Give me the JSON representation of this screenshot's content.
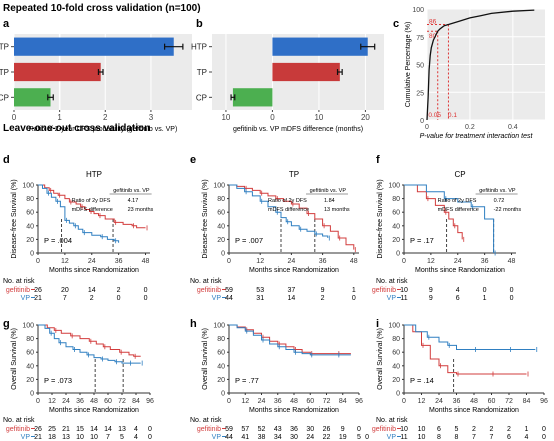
{
  "sections": {
    "top_title": "Repeated 10-fold cross validation (n=100)",
    "bottom_title": "Leave-one-out cross validation"
  },
  "colors": {
    "blue": "#2f6fc7",
    "red": "#c83a3a",
    "green": "#4caf50",
    "gefitinib": "#d23c3c",
    "vp": "#2f7fc1"
  },
  "chart_data": [
    {
      "panel": "a",
      "type": "bar",
      "orientation": "horizontal",
      "categories": [
        "HTP",
        "TP",
        "CP"
      ],
      "values": [
        3.5,
        1.9,
        0.8
      ],
      "errors": [
        0.2,
        0.05,
        0.06
      ],
      "bar_colors": [
        "blue",
        "red",
        "green"
      ],
      "xticks": [
        0,
        1,
        2,
        3
      ],
      "xlim": [
        0,
        3.9
      ],
      "xlabel": "Ratio of 2-year DFS probability (gefitinib vs. VP)",
      "refline": 1
    },
    {
      "panel": "b",
      "type": "bar",
      "orientation": "horizontal",
      "categories": [
        "HTP",
        "TP",
        "CP"
      ],
      "values": [
        20.5,
        14.5,
        -8.5
      ],
      "errors": [
        1.5,
        0.5,
        0.4
      ],
      "bar_colors": [
        "blue",
        "red",
        "green"
      ],
      "xticks": [
        -10,
        0,
        10,
        20
      ],
      "xticklabels": [
        "10",
        "0",
        "10",
        "20"
      ],
      "xlim": [
        -13,
        24
      ],
      "xlabel": "gefitinib vs. VP mDFS difference (months)"
    },
    {
      "panel": "c",
      "type": "line",
      "x": [
        0,
        0.005,
        0.01,
        0.015,
        0.02,
        0.03,
        0.04,
        0.05,
        0.06,
        0.08,
        0.1,
        0.15,
        0.2,
        0.25,
        0.3,
        0.4,
        0.5
      ],
      "y": [
        0,
        20,
        45,
        58,
        65,
        72,
        76,
        80,
        82,
        85,
        86,
        89,
        92,
        94,
        96,
        98,
        99
      ],
      "xlim": [
        0,
        0.55
      ],
      "ylim": [
        0,
        100
      ],
      "xticks": [
        0,
        0.2,
        0.4
      ],
      "yticks": [
        0,
        25,
        50,
        75,
        100
      ],
      "highlight_x": [
        0.05,
        0.1
      ],
      "highlight_x_labels": [
        "0.05",
        "0.1"
      ],
      "highlight_y": [
        80,
        86
      ],
      "highlight_y_labels": [
        "80",
        "86"
      ],
      "ylabel": "Cumulative Percentage (%)",
      "xlabel": "P-value for treatment interaction test"
    },
    {
      "panel": "d",
      "type": "line",
      "title": "HTP",
      "ylabel": "Disease-free Survival (%)",
      "xlabel": "Months since Randomization",
      "xticks": [
        0,
        12,
        24,
        36,
        48
      ],
      "xlim": [
        0,
        50
      ],
      "yticks": [
        0,
        20,
        40,
        60,
        80,
        100
      ],
      "pvalue": "P = .004",
      "inset_header": "gefitinib vs. VP",
      "inset_rows": [
        [
          "Ratio of 2y  DFS",
          "4.17"
        ],
        [
          "mDFS difference",
          "23 months"
        ]
      ],
      "series": [
        {
          "color": "gefitinib",
          "x": [
            0,
            3,
            5,
            7,
            9,
            12,
            14,
            17,
            19,
            21,
            23,
            25,
            27,
            30,
            34,
            38,
            42,
            44,
            48
          ],
          "y": [
            100,
            96,
            92,
            88,
            85,
            80,
            75,
            72,
            68,
            64,
            61,
            58,
            55,
            50,
            45,
            42,
            40,
            37,
            37
          ]
        },
        {
          "color": "vp",
          "x": [
            0,
            2,
            4,
            6,
            8,
            10,
            12,
            14,
            16,
            18,
            20,
            24,
            28,
            31,
            34,
            36
          ],
          "y": [
            100,
            95,
            88,
            82,
            76,
            68,
            48,
            44,
            40,
            35,
            30,
            26,
            24,
            20,
            18,
            15
          ]
        }
      ],
      "median_lines": [
        10.5,
        33.5
      ],
      "risk_times": [
        "0",
        "12",
        "24",
        "36",
        "48"
      ],
      "risk_rows": [
        {
          "label": "gefitinib",
          "values": [
            "26",
            "20",
            "14",
            "2",
            "0"
          ]
        },
        {
          "label": "VP",
          "values": [
            "21",
            "7",
            "2",
            "0",
            "0"
          ]
        }
      ]
    },
    {
      "panel": "e",
      "type": "line",
      "title": "TP",
      "ylabel": "Disease-free Survival (%)",
      "xlabel": "Months since Randomization",
      "xticks": [
        0,
        12,
        24,
        36,
        48
      ],
      "xlim": [
        0,
        50
      ],
      "yticks": [
        0,
        20,
        40,
        60,
        80,
        100
      ],
      "pvalue": "P = .007",
      "inset_header": "gefitinib vs. VP",
      "inset_rows": [
        [
          "Ratio of 2y  DFS",
          "1.84"
        ],
        [
          "mDFS difference",
          "13 months"
        ]
      ],
      "series": [
        {
          "color": "gefitinib",
          "x": [
            0,
            3,
            6,
            9,
            12,
            15,
            18,
            21,
            24,
            27,
            30,
            33,
            36,
            39,
            42,
            45,
            48
          ],
          "y": [
            100,
            98,
            95,
            92,
            88,
            84,
            80,
            76,
            72,
            66,
            58,
            50,
            40,
            32,
            22,
            12,
            5
          ]
        },
        {
          "color": "vp",
          "x": [
            0,
            3,
            6,
            9,
            12,
            15,
            18,
            20,
            22,
            24,
            27,
            30,
            33,
            36,
            38
          ],
          "y": [
            100,
            95,
            90,
            84,
            76,
            68,
            60,
            52,
            46,
            40,
            35,
            32,
            28,
            25,
            22
          ]
        }
      ],
      "median_lines": [
        20,
        33
      ],
      "risk_times": [
        "0",
        "12",
        "24",
        "36",
        "48"
      ],
      "risk_rows": [
        {
          "label": "gefitinib",
          "values": [
            "59",
            "53",
            "37",
            "9",
            "1"
          ]
        },
        {
          "label": "VP",
          "values": [
            "44",
            "31",
            "14",
            "2",
            "0"
          ]
        }
      ]
    },
    {
      "panel": "f",
      "type": "line",
      "title": "CP",
      "ylabel": "Disease-free Survival (%)",
      "xlabel": "Months since Randomization",
      "xticks": [
        0,
        12,
        24,
        36,
        48
      ],
      "xlim": [
        0,
        50
      ],
      "yticks": [
        0,
        20,
        40,
        60,
        80,
        100
      ],
      "pvalue": "P = .17",
      "inset_header": "gefitinib vs. VP",
      "inset_rows": [
        [
          "Ratio of 2y  DFS",
          "0.72"
        ],
        [
          "mDFS difference",
          "-22 months"
        ]
      ],
      "series": [
        {
          "color": "gefitinib",
          "x": [
            0,
            6,
            10,
            14,
            18,
            20,
            22,
            24,
            26
          ],
          "y": [
            100,
            90,
            80,
            70,
            60,
            50,
            40,
            30,
            20
          ]
        },
        {
          "color": "vp",
          "x": [
            0,
            10,
            18,
            24,
            30,
            36,
            40
          ],
          "y": [
            100,
            90,
            80,
            75,
            68,
            50,
            0
          ]
        }
      ],
      "median_lines": [
        19,
        40
      ],
      "risk_times": [
        "0",
        "12",
        "24",
        "36",
        "48"
      ],
      "risk_rows": [
        {
          "label": "gefitinib",
          "values": [
            "10",
            "9",
            "4",
            "0",
            "0"
          ]
        },
        {
          "label": "VP",
          "values": [
            "11",
            "9",
            "6",
            "1",
            "0"
          ]
        }
      ]
    },
    {
      "panel": "g",
      "type": "line",
      "ylabel": "Overall Survival (%)",
      "xlabel": "Months since Randomization",
      "xticks": [
        0,
        12,
        24,
        36,
        48,
        60,
        72,
        84,
        96
      ],
      "xlim": [
        0,
        96
      ],
      "yticks": [
        0,
        20,
        40,
        60,
        80,
        100
      ],
      "pvalue": "P = .073",
      "series": [
        {
          "color": "gefitinib",
          "x": [
            0,
            8,
            14,
            20,
            28,
            36,
            44,
            50,
            56,
            62,
            70,
            78,
            82,
            88
          ],
          "y": [
            100,
            96,
            92,
            88,
            84,
            80,
            76,
            72,
            68,
            64,
            60,
            56,
            54,
            54
          ]
        },
        {
          "color": "vp",
          "x": [
            0,
            6,
            10,
            14,
            18,
            24,
            30,
            36,
            42,
            48,
            54,
            60,
            66,
            72,
            78,
            84,
            88
          ],
          "y": [
            100,
            95,
            88,
            80,
            74,
            68,
            64,
            60,
            56,
            52,
            50,
            48,
            46,
            44,
            44,
            44,
            44
          ]
        }
      ],
      "median_lines": [
        49,
        73
      ],
      "risk_times": [
        "0",
        "12",
        "24",
        "36",
        "48",
        "60",
        "72",
        "84",
        "96"
      ],
      "risk_rows": [
        {
          "label": "gefitinib",
          "values": [
            "26",
            "25",
            "21",
            "15",
            "14",
            "14",
            "13",
            "4",
            "0"
          ]
        },
        {
          "label": "VP",
          "values": [
            "21",
            "18",
            "13",
            "10",
            "10",
            "7",
            "5",
            "4",
            "0"
          ]
        }
      ]
    },
    {
      "panel": "h",
      "type": "line",
      "ylabel": "Overall Survival (%)",
      "xlabel": "Months since Randomization",
      "xticks": [
        0,
        12,
        24,
        36,
        48,
        60,
        72,
        84,
        96
      ],
      "xlim": [
        0,
        96
      ],
      "yticks": [
        0,
        20,
        40,
        60,
        80,
        100
      ],
      "pvalue": "P = .77",
      "series": [
        {
          "color": "gefitinib",
          "x": [
            0,
            6,
            12,
            18,
            24,
            30,
            36,
            42,
            48,
            54,
            60,
            70,
            80,
            90
          ],
          "y": [
            100,
            97,
            93,
            88,
            82,
            76,
            72,
            68,
            64,
            60,
            58,
            58,
            58,
            58
          ]
        },
        {
          "color": "vp",
          "x": [
            0,
            6,
            12,
            18,
            24,
            30,
            36,
            42,
            48,
            54,
            60,
            70,
            80,
            90
          ],
          "y": [
            100,
            96,
            91,
            85,
            78,
            72,
            68,
            64,
            60,
            58,
            56,
            56,
            56,
            56
          ]
        }
      ],
      "median_lines": [],
      "risk_times": [
        "0",
        "12",
        "24",
        "36",
        "48",
        "60",
        "72",
        "84",
        "96"
      ],
      "risk_rows": [
        {
          "label": "gefitinib",
          "values": [
            "59",
            "57",
            "52",
            "43",
            "36",
            "30",
            "26",
            "9",
            "0"
          ]
        },
        {
          "label": "VP",
          "values": [
            "44",
            "41",
            "38",
            "34",
            "30",
            "24",
            "22",
            "19",
            "5",
            "0"
          ]
        }
      ]
    },
    {
      "panel": "i",
      "type": "line",
      "ylabel": "Overall Survival (%)",
      "xlabel": "Months since Randomization",
      "xticks": [
        0,
        12,
        24,
        36,
        48,
        60,
        72,
        84,
        96
      ],
      "xlim": [
        0,
        96
      ],
      "yticks": [
        0,
        20,
        40,
        60,
        80,
        100
      ],
      "pvalue": "P = .14",
      "series": [
        {
          "color": "gefitinib",
          "x": [
            0,
            6,
            12,
            18,
            24,
            30,
            36,
            48,
            60,
            72,
            84
          ],
          "y": [
            100,
            90,
            70,
            50,
            40,
            30,
            28,
            28,
            28,
            28,
            28
          ]
        },
        {
          "color": "vp",
          "x": [
            0,
            8,
            16,
            24,
            30,
            36,
            48,
            60,
            72,
            84,
            90
          ],
          "y": [
            100,
            90,
            82,
            75,
            70,
            64,
            64,
            64,
            64,
            64,
            64
          ]
        }
      ],
      "median_lines": [
        34
      ],
      "risk_times": [
        "0",
        "12",
        "24",
        "36",
        "48",
        "60",
        "72",
        "84",
        "96"
      ],
      "risk_rows": [
        {
          "label": "gefitinib",
          "values": [
            "10",
            "10",
            "6",
            "5",
            "2",
            "2",
            "2",
            "1",
            "0"
          ]
        },
        {
          "label": "VP",
          "values": [
            "11",
            "10",
            "8",
            "8",
            "7",
            "7",
            "6",
            "4",
            "0"
          ]
        }
      ]
    }
  ],
  "risk_header": "No. at risk"
}
